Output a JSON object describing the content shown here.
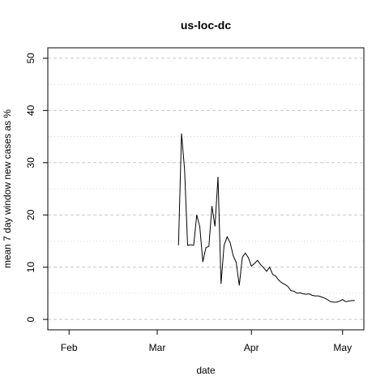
{
  "chart_data": {
    "type": "line",
    "title": "us-loc-dc",
    "xlabel": "date",
    "ylabel": "mean  7  day window new cases as %",
    "x_ticks": [
      "Feb",
      "Mar",
      "Apr",
      "May"
    ],
    "x_tick_dates": [
      "2020-02-01",
      "2020-03-01",
      "2020-04-01",
      "2020-05-01"
    ],
    "xlim": [
      "2020-01-25",
      "2020-05-08"
    ],
    "y_ticks": [
      0,
      10,
      20,
      30,
      40,
      50
    ],
    "ylim": [
      -2,
      52
    ],
    "grid": {
      "y_dashed_major": true,
      "y_dotted_minor": true
    },
    "colors": {
      "line": "#000000",
      "grid_major": "#c8c8c8",
      "grid_minor": "#d8d8d8",
      "frame": "#000000"
    },
    "series": [
      {
        "x": [
          "2020-03-08",
          "2020-03-09",
          "2020-03-10",
          "2020-03-11",
          "2020-03-12",
          "2020-03-13",
          "2020-03-14",
          "2020-03-15",
          "2020-03-16",
          "2020-03-17",
          "2020-03-18",
          "2020-03-19",
          "2020-03-20",
          "2020-03-21",
          "2020-03-22",
          "2020-03-23",
          "2020-03-24",
          "2020-03-25",
          "2020-03-26",
          "2020-03-27",
          "2020-03-28",
          "2020-03-29",
          "2020-03-30",
          "2020-03-31",
          "2020-04-01",
          "2020-04-02",
          "2020-04-03",
          "2020-04-04",
          "2020-04-05",
          "2020-04-06",
          "2020-04-07",
          "2020-04-08",
          "2020-04-09",
          "2020-04-10",
          "2020-04-11",
          "2020-04-12",
          "2020-04-13",
          "2020-04-14",
          "2020-04-15",
          "2020-04-16",
          "2020-04-17",
          "2020-04-18",
          "2020-04-19",
          "2020-04-20",
          "2020-04-21",
          "2020-04-22",
          "2020-04-23",
          "2020-04-24",
          "2020-04-25",
          "2020-04-26",
          "2020-04-27",
          "2020-04-28",
          "2020-04-29",
          "2020-04-30",
          "2020-05-01",
          "2020-05-02",
          "2020-05-03",
          "2020-05-04",
          "2020-05-05"
        ],
        "y": [
          14.2,
          35.6,
          28.7,
          14.2,
          14.3,
          14.2,
          20.0,
          17.8,
          11.0,
          13.7,
          14.0,
          21.7,
          17.8,
          27.3,
          6.8,
          14.2,
          15.8,
          14.7,
          12.2,
          10.9,
          6.5,
          11.9,
          12.7,
          11.8,
          10.2,
          10.7,
          11.3,
          10.5,
          9.9,
          9.2,
          10.0,
          8.6,
          8.3,
          7.5,
          7.0,
          6.7,
          6.3,
          5.5,
          5.4,
          5.0,
          5.1,
          4.9,
          4.8,
          4.9,
          4.6,
          4.5,
          4.5,
          4.3,
          4.1,
          3.8,
          3.4,
          3.3,
          3.3,
          3.5,
          3.8,
          3.4,
          3.5,
          3.6,
          3.6
        ]
      }
    ]
  }
}
